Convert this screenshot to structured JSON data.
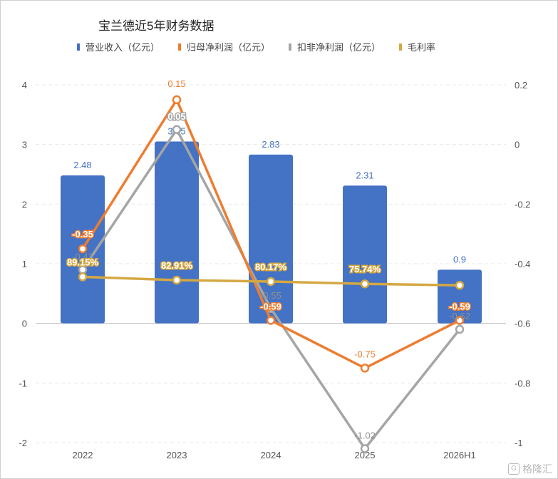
{
  "chart_data": {
    "type": "bar",
    "title": "宝兰德近5年财务数据",
    "categories": [
      "2022",
      "2023",
      "2024",
      "2025",
      "2026H1"
    ],
    "left_axis": {
      "ylim": [
        -2,
        4
      ],
      "ticks": [
        "4",
        "3",
        "2",
        "1",
        "0",
        "-1",
        "-2"
      ]
    },
    "right_axis": {
      "ylim": [
        -1,
        0.2
      ],
      "ticks": [
        "0.2",
        "0",
        "-0.2",
        "-0.4",
        "-0.6",
        "-0.8",
        "-1"
      ]
    },
    "grid": "horizontal-dashed",
    "legend_position": "top",
    "series": [
      {
        "name": "营业收入（亿元）",
        "kind": "bar",
        "axis": "left",
        "color": "#4472c4",
        "values": [
          2.48,
          3.05,
          2.83,
          2.31,
          0.9
        ],
        "labels": [
          "2.48",
          "3.05",
          "2.83",
          "2.31",
          "0.9"
        ]
      },
      {
        "name": "归母净利润（亿元）",
        "kind": "line",
        "axis": "right",
        "color": "#ed7d31",
        "values": [
          -0.35,
          0.15,
          -0.59,
          -0.75,
          -0.59
        ],
        "labels": [
          "-0.35",
          "0.15",
          "-0.59",
          "-0.75",
          "-0.59"
        ]
      },
      {
        "name": "扣非净利润（亿元）",
        "kind": "line",
        "axis": "right",
        "color": "#a5a5a5",
        "values": [
          -0.42,
          0.05,
          -0.55,
          -1.02,
          -0.62
        ],
        "labels": [
          "-0.42",
          "0.05",
          "-0.55",
          "-1.02",
          "-0.62"
        ]
      },
      {
        "name": "毛利率",
        "kind": "line",
        "axis": "left-scaled",
        "color": "#d4a843",
        "values": [
          89.15,
          82.91,
          80.17,
          75.74,
          73
        ],
        "labels": [
          "89.15%",
          "82.91%",
          "80.17%",
          "75.74%",
          ""
        ]
      }
    ]
  },
  "watermark": {
    "icon_text": "G",
    "text": "格隆汇"
  }
}
